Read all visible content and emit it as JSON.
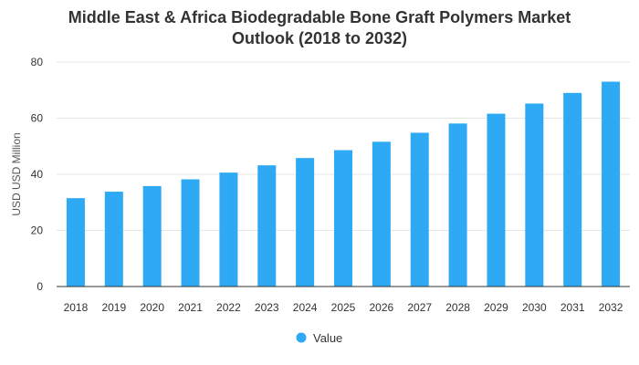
{
  "chart_data": {
    "type": "bar",
    "title_line1": "Middle East & Africa Biodegradable Bone Graft Polymers Market",
    "title_line2": "Outlook (2018 to 2032)",
    "ylabel": "USD USD Million",
    "xlabel": "",
    "ylim": [
      0,
      80
    ],
    "yticks": [
      0,
      20,
      40,
      60,
      80
    ],
    "grid": true,
    "legend_position": "bottom",
    "bar_color": "#2eaaf5",
    "categories": [
      "2018",
      "2019",
      "2020",
      "2021",
      "2022",
      "2023",
      "2024",
      "2025",
      "2026",
      "2027",
      "2028",
      "2029",
      "2030",
      "2031",
      "2032"
    ],
    "series": [
      {
        "name": "Value",
        "values": [
          31.5,
          33.8,
          35.8,
          38.2,
          40.6,
          43.2,
          45.8,
          48.6,
          51.6,
          54.8,
          58.1,
          61.6,
          65.2,
          69.0,
          73.0
        ]
      }
    ]
  }
}
